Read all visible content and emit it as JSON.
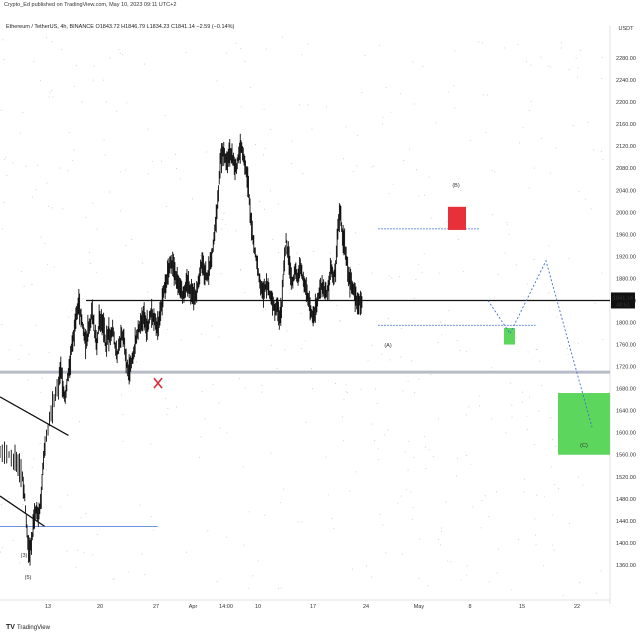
{
  "header": {
    "publisher": "Crypto_Ed published on TradingView.com, May 10, 2023 09:11 UTC+2",
    "symbol_line": "Ethereum / TetherUS, 4h, BINANCE O1843.72 H1846.79 L1834.23 C1841.14 −2.59 (−0.14%)"
  },
  "footer": {
    "logo_text": "TradingView"
  },
  "colors": {
    "candle": "#111111",
    "resistance": "#111111",
    "support_zone": "#b8bcc8",
    "projection": "#3d6fd6",
    "target_box": "#5cd65c",
    "top_box": "#e8303a",
    "cross": "#d8313b",
    "price_label_bg": "#111111"
  },
  "chart_data": {
    "type": "candlestick",
    "title": "",
    "xlabel": "",
    "ylabel": "",
    "currency": "USDT",
    "ylim": [
      1300,
      2320
    ],
    "y_ticks": [
      2280.0,
      2240.0,
      2200.0,
      2160.0,
      2120.0,
      2080.0,
      2040.0,
      2000.0,
      1960.0,
      1920.0,
      1880.0,
      1840.0,
      1800.0,
      1760.0,
      1720.0,
      1680.0,
      1640.0,
      1600.0,
      1560.0,
      1520.0,
      1480.0,
      1440.0,
      1400.0,
      1360.0
    ],
    "x_ticks": [
      "13",
      "20",
      "27",
      "Apr",
      "14:00",
      "10",
      "17",
      "24",
      "May",
      "8",
      "15",
      "22"
    ],
    "last_price": "1841.14",
    "countdown": "48:51",
    "price_path": [
      [
        0,
        1570
      ],
      [
        3,
        1560
      ],
      [
        6,
        1555
      ],
      [
        8,
        1545
      ],
      [
        10,
        1520
      ],
      [
        11,
        1480
      ],
      [
        12,
        1420
      ],
      [
        13,
        1380
      ],
      [
        14,
        1400
      ],
      [
        15,
        1440
      ],
      [
        16,
        1460
      ],
      [
        17,
        1450
      ],
      [
        18,
        1470
      ],
      [
        19,
        1530
      ],
      [
        20,
        1580
      ],
      [
        22,
        1620
      ],
      [
        24,
        1660
      ],
      [
        26,
        1690
      ],
      [
        27,
        1720
      ],
      [
        28,
        1680
      ],
      [
        29,
        1660
      ],
      [
        30,
        1700
      ],
      [
        31,
        1720
      ],
      [
        32,
        1760
      ],
      [
        33,
        1780
      ],
      [
        34,
        1820
      ],
      [
        35,
        1830
      ],
      [
        36,
        1810
      ],
      [
        37,
        1790
      ],
      [
        38,
        1760
      ],
      [
        39,
        1780
      ],
      [
        40,
        1800
      ],
      [
        41,
        1820
      ],
      [
        42,
        1780
      ],
      [
        43,
        1760
      ],
      [
        44,
        1800
      ],
      [
        45,
        1810
      ],
      [
        46,
        1790
      ],
      [
        47,
        1760
      ],
      [
        48,
        1780
      ],
      [
        49,
        1770
      ],
      [
        50,
        1790
      ],
      [
        51,
        1760
      ],
      [
        52,
        1740
      ],
      [
        53,
        1760
      ],
      [
        54,
        1780
      ],
      [
        55,
        1770
      ],
      [
        56,
        1730
      ],
      [
        57,
        1710
      ],
      [
        58,
        1720
      ],
      [
        59,
        1740
      ],
      [
        60,
        1760
      ],
      [
        61,
        1780
      ],
      [
        62,
        1790
      ],
      [
        63,
        1800
      ],
      [
        64,
        1810
      ],
      [
        65,
        1790
      ],
      [
        66,
        1800
      ],
      [
        67,
        1820
      ],
      [
        68,
        1810
      ],
      [
        69,
        1800
      ],
      [
        70,
        1790
      ],
      [
        71,
        1810
      ],
      [
        72,
        1840
      ],
      [
        73,
        1860
      ],
      [
        74,
        1880
      ],
      [
        75,
        1900
      ],
      [
        76,
        1910
      ],
      [
        77,
        1900
      ],
      [
        78,
        1880
      ],
      [
        79,
        1870
      ],
      [
        80,
        1860
      ],
      [
        81,
        1850
      ],
      [
        82,
        1860
      ],
      [
        83,
        1870
      ],
      [
        84,
        1860
      ],
      [
        85,
        1850
      ],
      [
        86,
        1840
      ],
      [
        87,
        1850
      ],
      [
        88,
        1870
      ],
      [
        89,
        1900
      ],
      [
        90,
        1910
      ],
      [
        91,
        1890
      ],
      [
        92,
        1880
      ],
      [
        93,
        1900
      ],
      [
        94,
        1920
      ],
      [
        95,
        1950
      ],
      [
        96,
        1990
      ],
      [
        97,
        2040
      ],
      [
        98,
        2100
      ],
      [
        99,
        2110
      ],
      [
        100,
        2100
      ],
      [
        101,
        2090
      ],
      [
        102,
        2110
      ],
      [
        103,
        2100
      ],
      [
        104,
        2090
      ],
      [
        105,
        2080
      ],
      [
        106,
        2110
      ],
      [
        107,
        2120
      ],
      [
        108,
        2100
      ],
      [
        109,
        2080
      ],
      [
        110,
        2060
      ],
      [
        111,
        2000
      ],
      [
        112,
        1960
      ],
      [
        113,
        1930
      ],
      [
        114,
        1910
      ],
      [
        115,
        1880
      ],
      [
        116,
        1860
      ],
      [
        117,
        1850
      ],
      [
        118,
        1870
      ],
      [
        119,
        1860
      ],
      [
        120,
        1850
      ],
      [
        121,
        1840
      ],
      [
        122,
        1820
      ],
      [
        123,
        1830
      ],
      [
        124,
        1810
      ],
      [
        125,
        1830
      ],
      [
        126,
        1900
      ],
      [
        127,
        1950
      ],
      [
        128,
        1920
      ],
      [
        129,
        1880
      ],
      [
        130,
        1870
      ],
      [
        131,
        1900
      ],
      [
        132,
        1880
      ],
      [
        133,
        1900
      ],
      [
        134,
        1890
      ],
      [
        135,
        1870
      ],
      [
        136,
        1860
      ],
      [
        137,
        1840
      ],
      [
        138,
        1820
      ],
      [
        139,
        1810
      ],
      [
        140,
        1820
      ],
      [
        141,
        1840
      ],
      [
        142,
        1860
      ],
      [
        143,
        1870
      ],
      [
        144,
        1860
      ],
      [
        145,
        1850
      ],
      [
        146,
        1870
      ],
      [
        147,
        1900
      ],
      [
        148,
        1880
      ],
      [
        149,
        1900
      ],
      [
        150,
        1970
      ],
      [
        151,
        2000
      ],
      [
        152,
        1960
      ],
      [
        153,
        1940
      ],
      [
        154,
        1910
      ],
      [
        155,
        1880
      ],
      [
        156,
        1870
      ],
      [
        157,
        1860
      ],
      [
        158,
        1840
      ],
      [
        159,
        1830
      ],
      [
        160,
        1840
      ],
      [
        161,
        1840
      ]
    ],
    "resistance_level": 1840,
    "support_level": 1710,
    "projection_path": [
      [
        161,
        1840
      ],
      [
        168,
        1780
      ],
      [
        176,
        1912
      ],
      [
        190,
        1610
      ]
    ],
    "annotations": {
      "wave_labels": [
        {
          "text": "(3)",
          "x": 12,
          "y": 1380
        },
        {
          "text": "(5)",
          "x": 12,
          "y": 1350
        },
        {
          "text": "(A)",
          "x": 126,
          "y": 1760
        },
        {
          "text": "(B)",
          "x": 151,
          "y": 2040
        },
        {
          "text": "(C)",
          "x": 195,
          "y": 1600
        }
      ],
      "cross": {
        "x": 52,
        "y": 1690
      },
      "small_target_box": {
        "x0": 167,
        "x1": 171,
        "y0": 1760,
        "y1": 1790
      },
      "big_target_box": {
        "x0": 187,
        "x1": 204,
        "y0": 1560,
        "y1": 1672
      },
      "top_box": {
        "x0": 149,
        "x1": 155,
        "y0": 1968,
        "y1": 2010
      },
      "range_top_line": {
        "x0": 127,
        "x1": 161,
        "y": 1970
      },
      "range_bottom_line": {
        "x0": 127,
        "x1": 180,
        "y": 1795
      },
      "lower_support_line": {
        "x0": 0,
        "x1": 53,
        "y": 1430
      },
      "channel_upper": {
        "x0": 0,
        "x1": 23,
        "y0": 1665,
        "y1": 1595
      },
      "channel_lower": {
        "x0": 0,
        "x1": 15,
        "y0": 1485,
        "y1": 1430
      }
    }
  }
}
